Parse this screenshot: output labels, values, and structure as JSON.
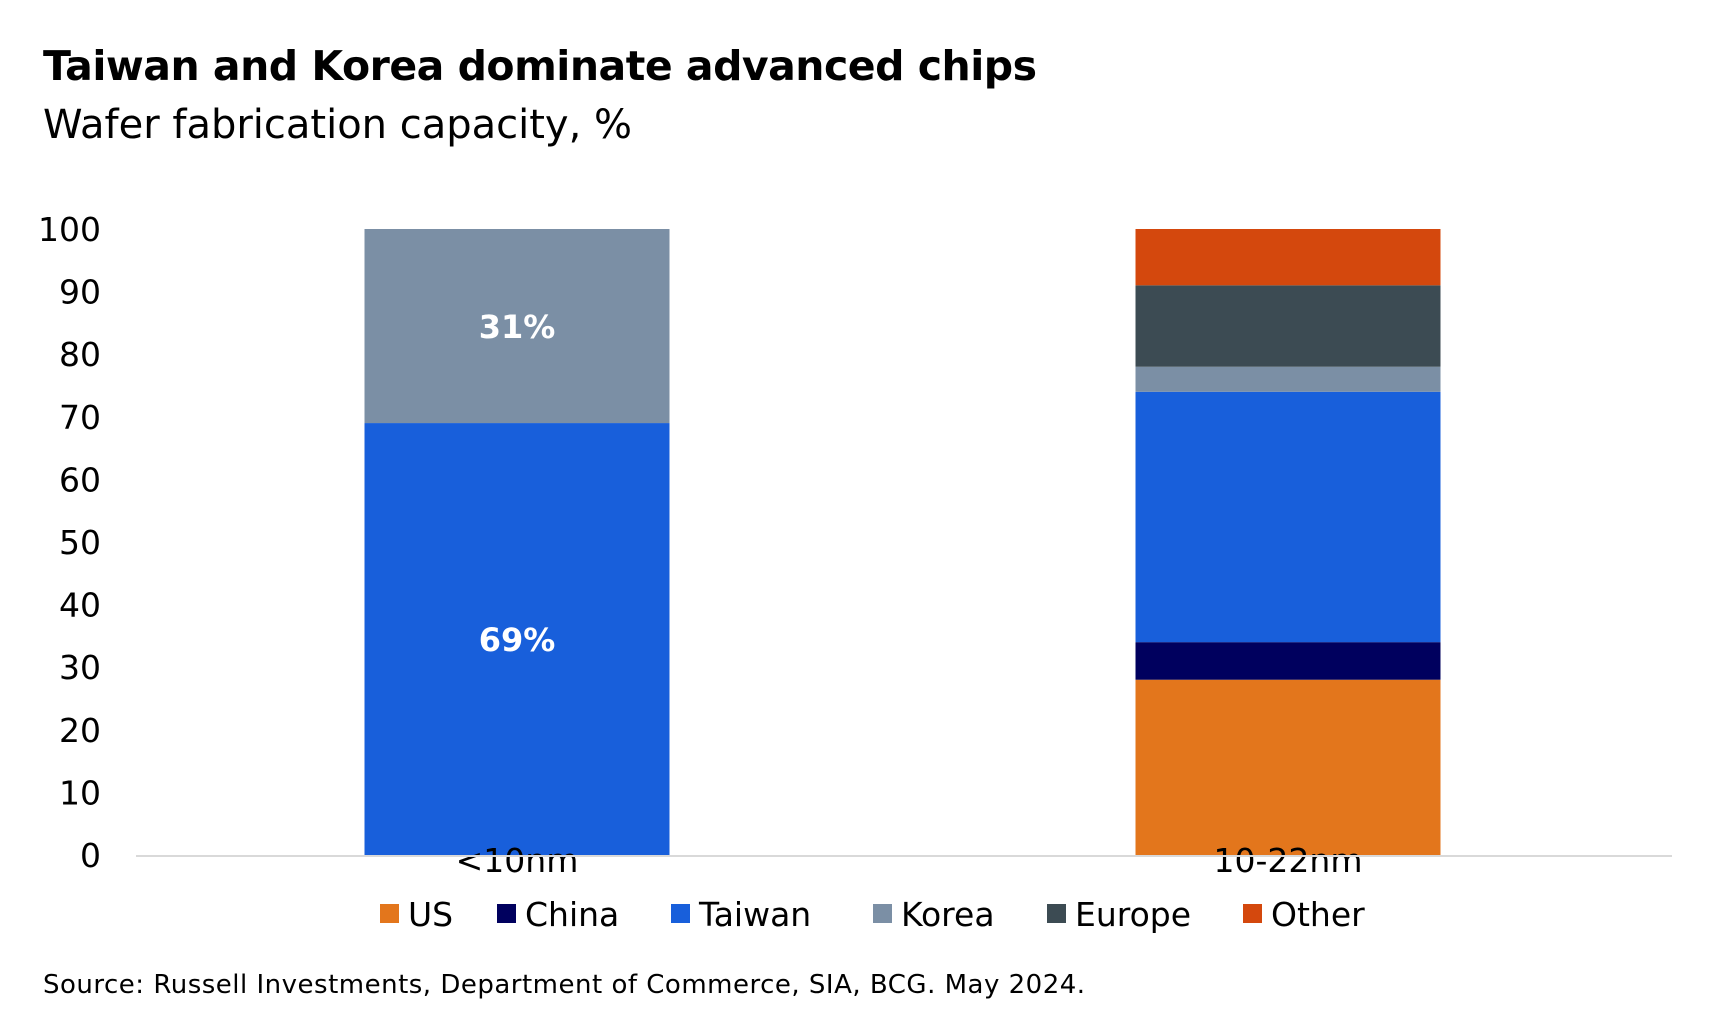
{
  "chart_data": {
    "type": "bar",
    "stacked": true,
    "title": "Taiwan and Korea dominate advanced chips",
    "subtitle": "Wafer fabrication capacity, %",
    "xlabel": "",
    "ylabel": "",
    "ylim": [
      0,
      100
    ],
    "yticks": [
      "0",
      "10",
      "20",
      "30",
      "40",
      "50",
      "60",
      "70",
      "80",
      "90",
      "100"
    ],
    "grid": false,
    "legend_position": "bottom",
    "categories": [
      "<10nm",
      "10-22nm"
    ],
    "series": [
      {
        "name": "US",
        "color": "#E3761C",
        "values": [
          0,
          28
        ],
        "labels": [
          "",
          ""
        ]
      },
      {
        "name": "China",
        "color": "#00005E",
        "values": [
          0,
          6
        ],
        "labels": [
          "",
          ""
        ]
      },
      {
        "name": "Taiwan",
        "color": "#185FDB",
        "values": [
          69,
          40
        ],
        "labels": [
          "69%",
          ""
        ]
      },
      {
        "name": "Korea",
        "color": "#7B8FA5",
        "values": [
          31,
          4
        ],
        "labels": [
          "31%",
          ""
        ]
      },
      {
        "name": "Europe",
        "color": "#3C4B53",
        "values": [
          0,
          13
        ],
        "labels": [
          "",
          ""
        ]
      },
      {
        "name": "Other",
        "color": "#D4480D",
        "values": [
          0,
          9
        ],
        "labels": [
          "",
          ""
        ]
      }
    ]
  },
  "source": "Source: Russell Investments, Department of Commerce, SIA, BCG. May 2024."
}
